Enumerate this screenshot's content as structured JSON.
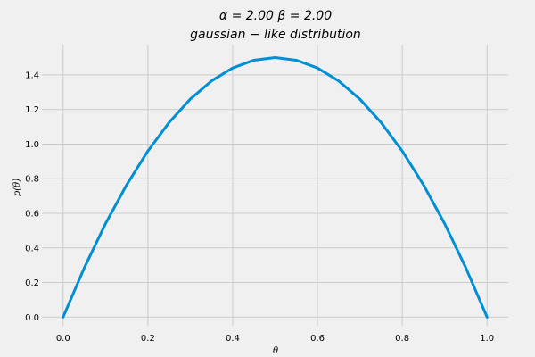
{
  "chart_data": {
    "type": "line",
    "title_line1": "α = 2.00    β = 2.00",
    "title_line2": "gaussian − like   distribution",
    "xlabel": "θ",
    "ylabel": "p(θ)",
    "xlim": [
      -0.05,
      1.05
    ],
    "ylim": [
      -0.05,
      1.575
    ],
    "x_ticks": [
      0.0,
      0.2,
      0.4,
      0.6,
      0.8,
      1.0
    ],
    "x_tick_labels": [
      "0.0",
      "0.2",
      "0.4",
      "0.6",
      "0.8",
      "1.0"
    ],
    "y_ticks": [
      0.0,
      0.2,
      0.4,
      0.6,
      0.8,
      1.0,
      1.2,
      1.4
    ],
    "y_tick_labels": [
      "0.0",
      "0.2",
      "0.4",
      "0.6",
      "0.8",
      "1.0",
      "1.2",
      "1.4"
    ],
    "grid": true,
    "series": [
      {
        "color": "#008fd5",
        "x": [
          0.0,
          0.05,
          0.1,
          0.15,
          0.2,
          0.25,
          0.3,
          0.35,
          0.4,
          0.45,
          0.5,
          0.55,
          0.6,
          0.65,
          0.7,
          0.75,
          0.8,
          0.85,
          0.9,
          0.95,
          1.0
        ],
        "y": [
          0.0,
          0.285,
          0.54,
          0.765,
          0.96,
          1.125,
          1.26,
          1.365,
          1.44,
          1.485,
          1.5,
          1.485,
          1.44,
          1.365,
          1.26,
          1.125,
          0.96,
          0.765,
          0.54,
          0.285,
          0.0
        ]
      }
    ]
  }
}
